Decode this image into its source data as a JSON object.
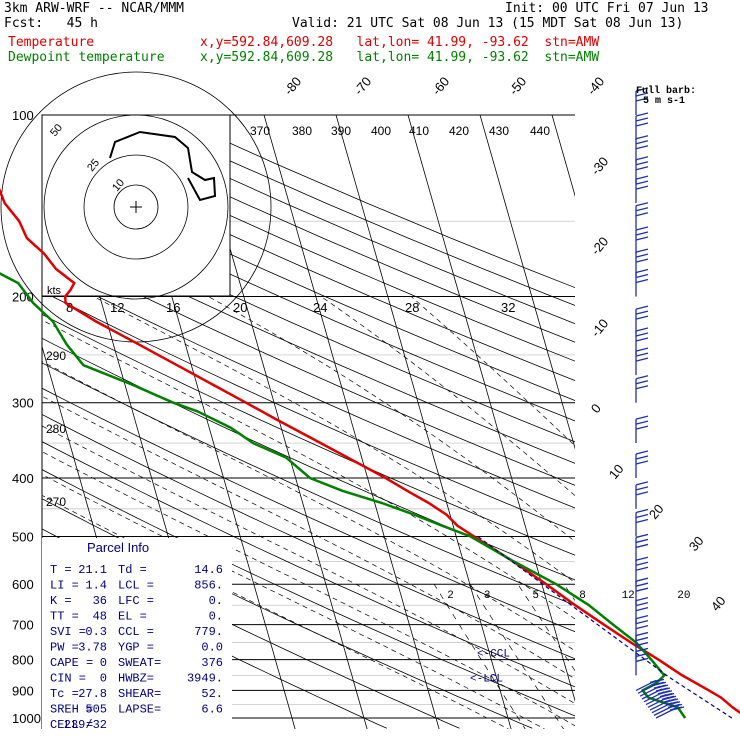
{
  "header": {
    "line1_left": "3km ARW-WRF -- NCAR/MMM",
    "line1_right": "Init: 00 UTC Fri 07 Jun 13",
    "line2_left": "Fcst:   45 h",
    "line2_right": "Valid: 21 UTC Sat 08 Jun 13 (15 MDT Sat 08 Jun 13)",
    "temp_label": "Temperature",
    "temp_info": "x,y=592.84,609.28   lat,lon= 41.99, -93.62  stn=AMW",
    "dew_label": "Dewpoint temperature",
    "dew_info": "x,y=592.84,609.28   lat,lon= 41.99, -93.62  stn=AMW"
  },
  "colors": {
    "temperature": "#e00000",
    "dewpoint": "#008000",
    "wind": "#1f2fb0",
    "parcel": "#000080"
  },
  "chart_data": {
    "type": "line",
    "pressure_ticks": [
      "100",
      "200",
      "300",
      "400",
      "500",
      "600",
      "700",
      "800",
      "900",
      "1000"
    ],
    "isotherm_labels": [
      "-80",
      "-70",
      "-60",
      "-50",
      "-40",
      "-30",
      "-20",
      "-10",
      "0",
      "10",
      "20",
      "30",
      "40"
    ],
    "theta_labels": [
      "370",
      "380",
      "390",
      "400",
      "410",
      "420",
      "430",
      "440"
    ],
    "theta_low_labels": [
      "290",
      "280",
      "270"
    ],
    "mixing_ratio_labels": [
      "2",
      "3",
      "5",
      "8",
      "12",
      "20"
    ],
    "hodo_speed_labels": [
      "50",
      "25",
      "10"
    ],
    "hodo_unit": "kts",
    "hodo_axis_labels": [
      "8",
      "12",
      "16",
      "20",
      "24",
      "28",
      "32"
    ],
    "wind_note_line1": "Full barb:",
    "wind_note_line2": "5 m s-1",
    "ccl_label": "<-CCL",
    "lcl_label": "<-LCL",
    "series": [
      {
        "name": "Temperature",
        "p": [
          1000,
          960,
          925,
          900,
          850,
          800,
          750,
          700,
          650,
          600,
          550,
          500,
          480,
          460,
          440,
          420,
          400,
          380,
          360,
          340,
          320,
          300,
          280,
          260,
          240,
          220,
          205,
          200,
          195,
          190,
          180,
          170,
          160,
          150,
          140,
          130,
          120,
          110,
          100
        ],
        "t": [
          23.3,
          21.6,
          20.4,
          19.0,
          15.9,
          13.2,
          10.1,
          7.0,
          3.8,
          0.6,
          -3.1,
          -7.5,
          -9.4,
          -10.5,
          -12.5,
          -15.0,
          -17.5,
          -20.4,
          -23.5,
          -26.8,
          -30.3,
          -33.9,
          -37.8,
          -42.0,
          -46.5,
          -51.5,
          -55.0,
          -54.8,
          -53.8,
          -53.0,
          -55.0,
          -56.0,
          -57.8,
          -58.2,
          -59.5,
          -59.8,
          -60.2,
          -61.0,
          -62.0
        ]
      },
      {
        "name": "Dewpoint temperature",
        "p": [
          1000,
          960,
          925,
          900,
          875,
          850,
          800,
          750,
          700,
          650,
          600,
          550,
          500,
          480,
          460,
          440,
          420,
          400,
          370,
          350,
          330,
          310,
          300,
          280,
          260,
          240,
          220,
          205,
          190,
          180,
          165,
          155,
          140,
          130,
          120,
          110,
          100
        ],
        "td": [
          14.6,
          14.0,
          10.3,
          9.8,
          12.0,
          13.4,
          12.2,
          10.8,
          8.3,
          5.7,
          2.0,
          -3.0,
          -8.0,
          -11.5,
          -15.0,
          -19.0,
          -24.0,
          -28.0,
          -30.5,
          -34.5,
          -37.0,
          -41.0,
          -44.0,
          -49.0,
          -55.0,
          -56.5,
          -57.5,
          -59.5,
          -60.8,
          -64.0,
          -66.5,
          -70.0,
          -73.5,
          -75.0,
          -75.5,
          -76.0,
          -76.0
        ]
      }
    ],
    "wind_barbs_pressure": [
      1000,
      990,
      980,
      970,
      960,
      950,
      940,
      930,
      920,
      910,
      900,
      850,
      800,
      750,
      700,
      650,
      600,
      550,
      500,
      450,
      400,
      350,
      300,
      270,
      250,
      230,
      200,
      185,
      170,
      155,
      140,
      130,
      120,
      110,
      100
    ]
  },
  "parcel_info": {
    "title": "Parcel Info",
    "rows": [
      [
        "T  =",
        "21.1",
        "Td =",
        "14.6"
      ],
      [
        "LI =",
        "1.4",
        "LCL =",
        "856."
      ],
      [
        "K  =",
        "36",
        "LFC =",
        "0."
      ],
      [
        "TT =",
        "48",
        "EL =",
        "0."
      ],
      [
        "SVI =",
        "0.3",
        "CCL =",
        "779."
      ],
      [
        "PW =",
        "3.78",
        "YGP =",
        "0.0"
      ],
      [
        "CAPE =",
        "0",
        "SWEAT=",
        "376"
      ],
      [
        "CIN =",
        "0",
        "HWBZ=",
        "3949."
      ],
      [
        "Tc =",
        "27.8",
        "SHEAR=",
        "52."
      ],
      [
        "SREH =",
        "505",
        "LAPSE=",
        "6.6"
      ],
      [
        "CELL =",
        "239/32",
        "",
        ""
      ]
    ]
  }
}
